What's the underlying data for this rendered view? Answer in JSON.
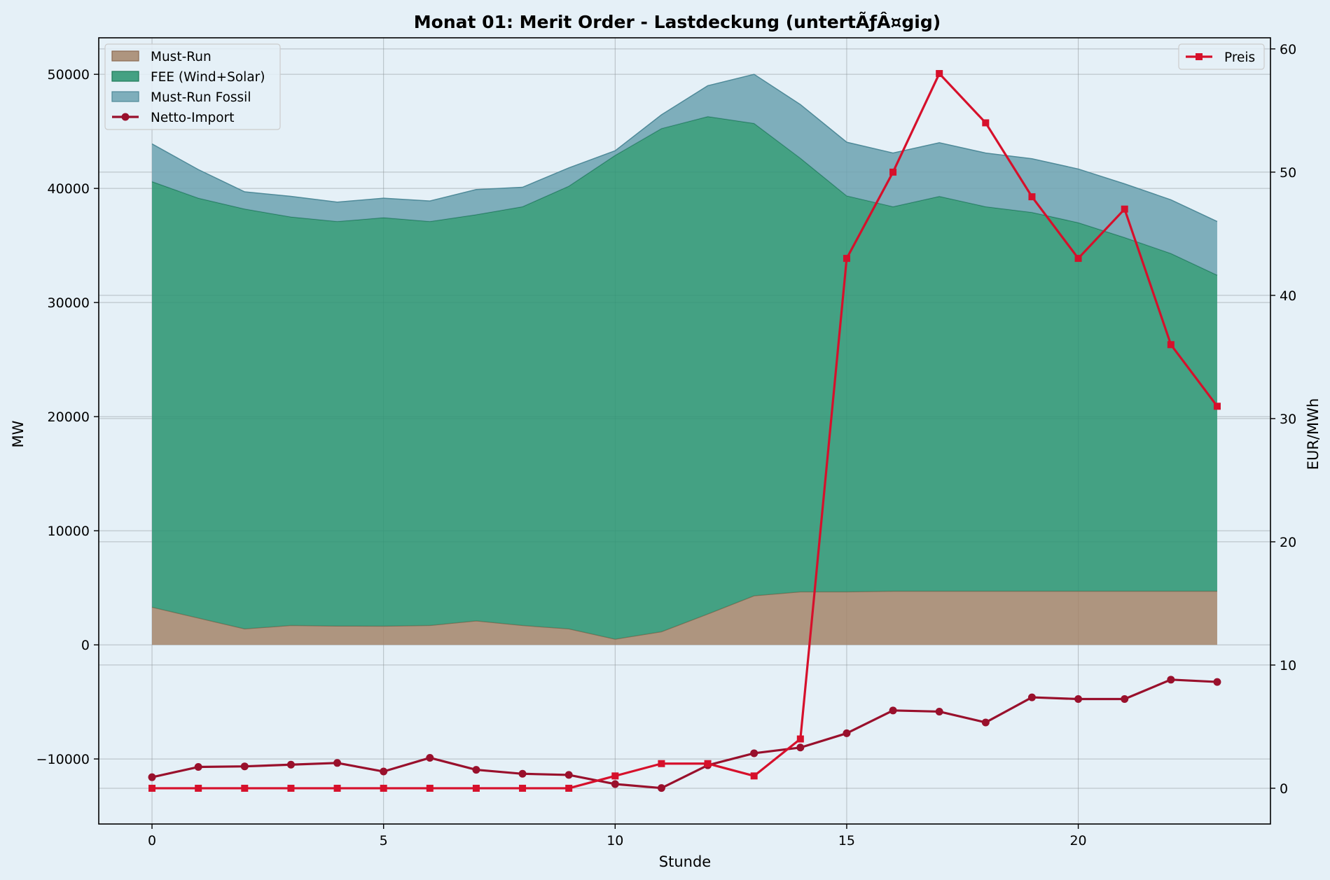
{
  "chart_data": {
    "type": "area",
    "title": "Monat 01: Merit Order - Lastdeckung (untertÃƒÂ¤gig)",
    "xlabel": "Stunde",
    "ylabel": "MW",
    "ylabel_right": "EUR/MWh",
    "x": [
      0,
      1,
      2,
      3,
      4,
      5,
      6,
      7,
      8,
      9,
      10,
      11,
      12,
      13,
      14,
      15,
      16,
      17,
      18,
      19,
      20,
      21,
      22,
      23
    ],
    "xlim": [
      -1.15,
      24.15
    ],
    "xticks": [
      0,
      5,
      10,
      15,
      20
    ],
    "ylim": [
      -15700,
      53200
    ],
    "yticks": [
      -10000,
      0,
      10000,
      20000,
      30000,
      40000,
      50000
    ],
    "ylim_right": [
      -2.9,
      60.9
    ],
    "yticks_right": [
      0,
      10,
      20,
      30,
      40,
      50,
      60
    ],
    "grid": true,
    "stacked_series": [
      {
        "name": "Must-Run",
        "color": "#a5856a",
        "values": [
          3300,
          2350,
          1400,
          1700,
          1650,
          1640,
          1700,
          2100,
          1700,
          1400,
          500,
          1150,
          2700,
          4300,
          4650,
          4650,
          4700,
          4700,
          4700,
          4700,
          4700,
          4700,
          4700,
          4700
        ]
      },
      {
        "name": "FEE (Wind+Solar)",
        "color": "#2e9573",
        "values": [
          37300,
          36800,
          36800,
          35800,
          35450,
          35800,
          35400,
          35600,
          36700,
          38800,
          42400,
          44100,
          43600,
          41400,
          38000,
          34700,
          33700,
          34600,
          33700,
          33200,
          32300,
          31000,
          29600,
          27700
        ]
      },
      {
        "name": "Must-Run Fossil",
        "color": "#6ca2b0",
        "values": [
          3300,
          2500,
          1500,
          1800,
          1700,
          1700,
          1800,
          2200,
          1700,
          1600,
          400,
          1200,
          2700,
          4300,
          4700,
          4700,
          4700,
          4700,
          4700,
          4700,
          4700,
          4700,
          4700,
          4700
        ]
      }
    ],
    "line_series": [
      {
        "name": "Netto-Import",
        "color": "#99102c",
        "marker": "circle",
        "axis": "left",
        "values": [
          -11600,
          -10700,
          -10650,
          -10500,
          -10350,
          -11100,
          -9900,
          -10950,
          -11300,
          -11400,
          -12200,
          -12550,
          -10550,
          -9500,
          -9000,
          -7750,
          -5750,
          -5850,
          -6800,
          -4600,
          -4750,
          -4750,
          -3050,
          -3250
        ]
      },
      {
        "name": "Preis",
        "color": "#d6102b",
        "marker": "square",
        "axis": "right",
        "values": [
          0,
          0,
          0,
          0,
          0,
          0,
          0,
          0,
          0,
          0,
          1,
          2,
          2,
          1,
          4,
          43,
          50,
          58,
          54,
          48,
          43,
          47,
          36,
          31
        ]
      }
    ],
    "legend_left": [
      "Must-Run",
      "FEE (Wind+Solar)",
      "Must-Run Fossil",
      "Netto-Import"
    ],
    "legend_left_position": "upper left",
    "legend_right": [
      "Preis"
    ],
    "legend_right_position": "upper right"
  }
}
